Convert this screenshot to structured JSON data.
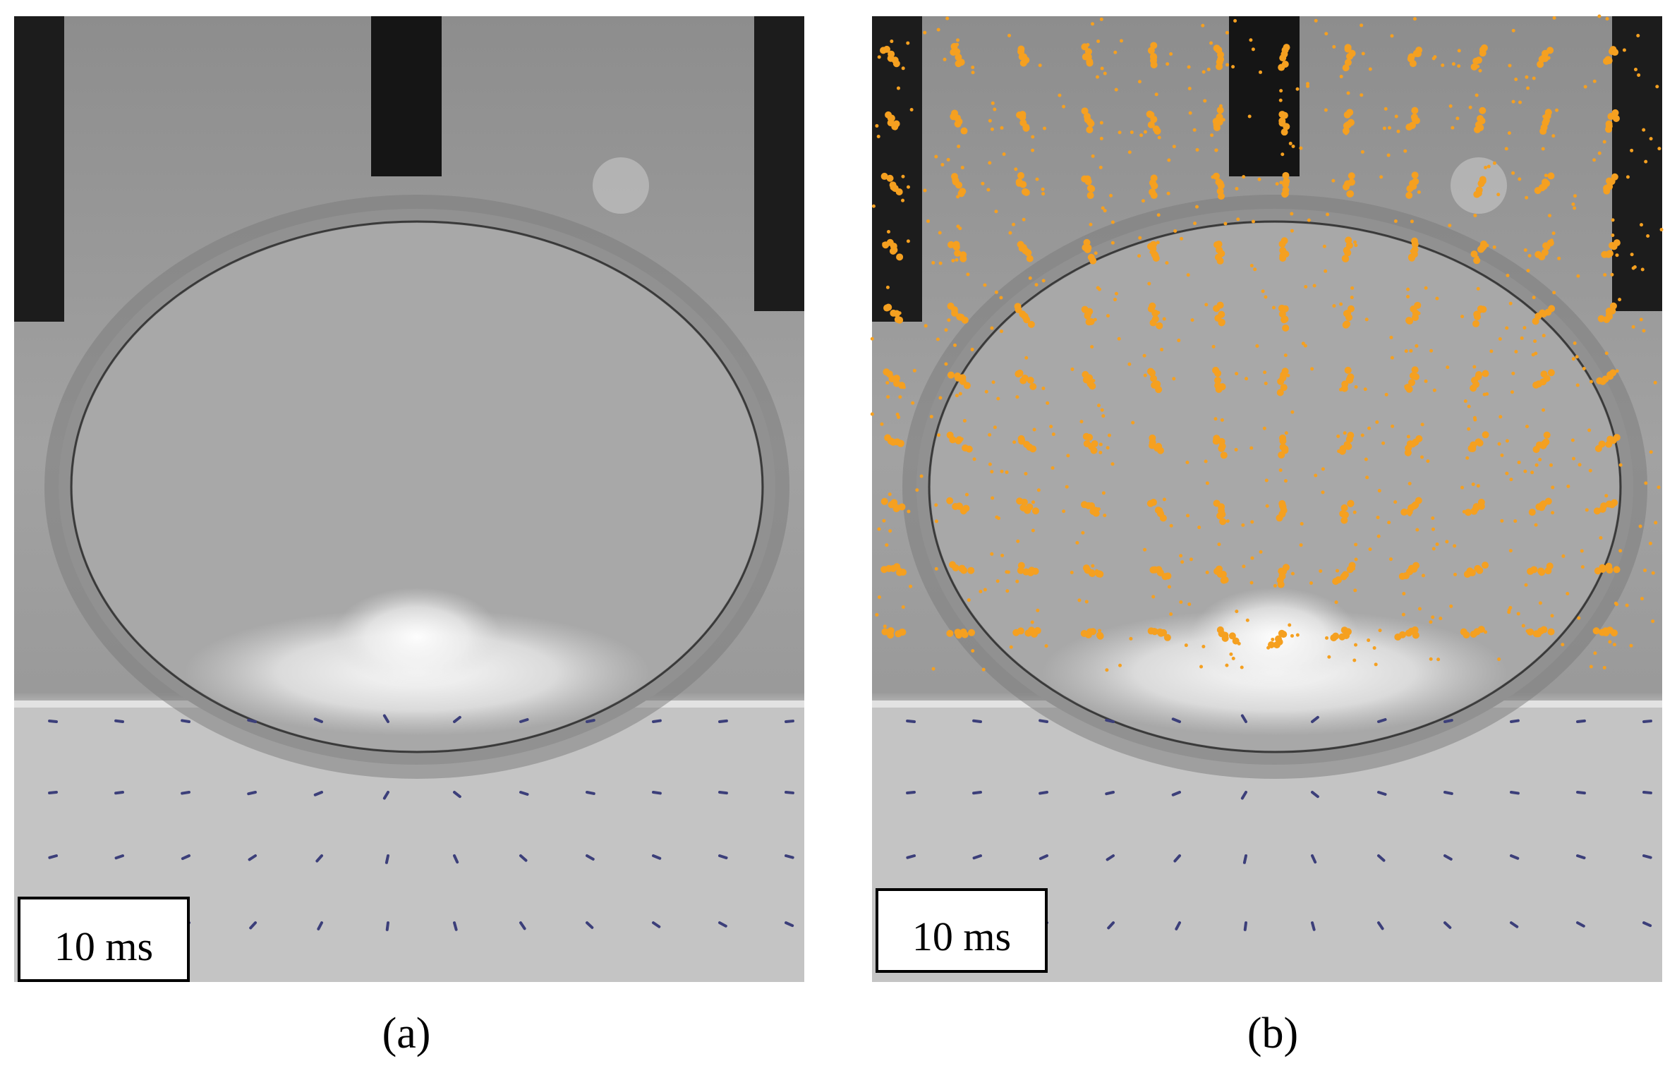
{
  "panels": [
    {
      "label": "(a)",
      "scale_label": "10 ms"
    },
    {
      "label": "(b)",
      "scale_label": "10 ms"
    }
  ]
}
